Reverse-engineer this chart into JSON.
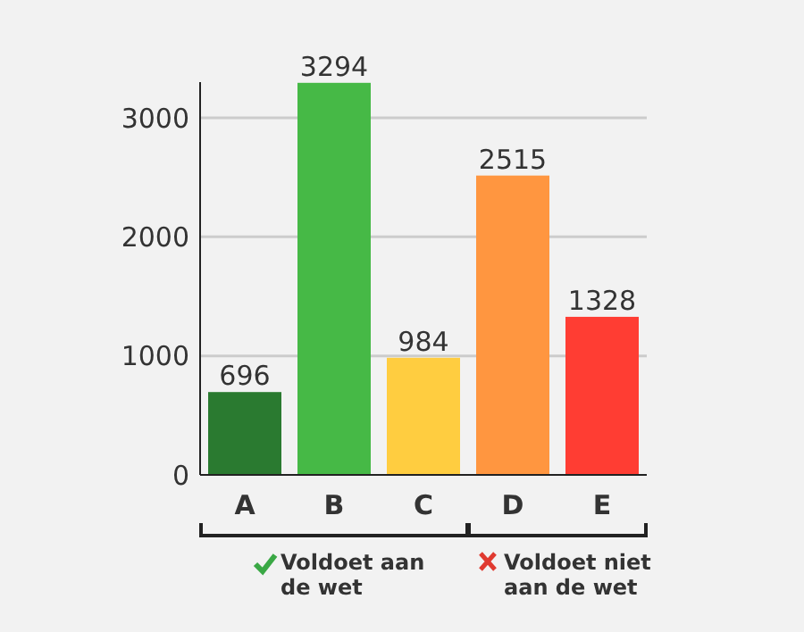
{
  "chart_data": {
    "type": "bar",
    "categories": [
      "A",
      "B",
      "C",
      "D",
      "E"
    ],
    "values": [
      696,
      3294,
      984,
      2515,
      1328
    ],
    "colors": [
      "#2a7a30",
      "#46b946",
      "#ffcd40",
      "#ff9640",
      "#ff3d33"
    ],
    "ylim": [
      0,
      3300
    ],
    "yticks": [
      0,
      1000,
      2000,
      3000
    ],
    "grid": "y",
    "data_labels": true,
    "annotations": [
      "Voldoet aan de wet",
      "Voldoet niet aan de wet"
    ]
  }
}
